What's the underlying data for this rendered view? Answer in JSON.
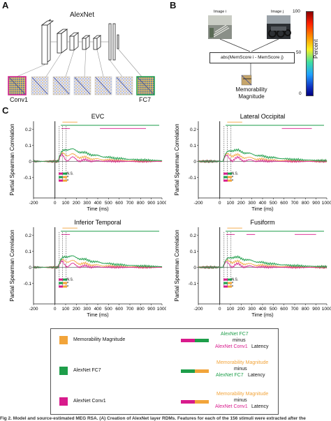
{
  "panel_a": {
    "letter": "A",
    "network_title": "AlexNet",
    "first_layer_label": "Conv1",
    "last_layer_label": "FC7"
  },
  "panel_b": {
    "letter": "B",
    "image_i_label": "Image i",
    "image_j_label": "Image j",
    "formula": "abs(MemScore i - MemScore j)",
    "output_label_line1": "Memorability",
    "output_label_line2": "Magnitude",
    "colorbar_label": "Percent",
    "colorbar_ticks": [
      "100",
      "50",
      "0"
    ]
  },
  "panel_c": {
    "letter": "C",
    "y_axis_label": "Partial Spearman Correlation",
    "x_axis_label": "Time (ms)",
    "ns_label": "N.S.",
    "star_label": "*",
    "x_ticks": [
      "-200",
      "0",
      "100",
      "200",
      "300",
      "400",
      "500",
      "600",
      "700",
      "800",
      "900",
      "1000"
    ],
    "y_ticks": [
      "0.2",
      "0.1",
      "0",
      "-0.1"
    ],
    "plots": [
      "EVC",
      "Lateral Occipital",
      "Inferior Temporal",
      "Fusiform"
    ]
  },
  "legend": {
    "items": [
      {
        "label": "Memorability Magnitude",
        "color": "#f2a43a"
      },
      {
        "label": "AlexNet FC7",
        "color": "#1e9e4a"
      },
      {
        "label": "AlexNet Conv1",
        "color": "#d81b8c"
      }
    ],
    "latency": [
      {
        "first": "AlexNet FC7",
        "minus": "minus",
        "second": "AlexNet Conv1",
        "suffix": "Latency"
      },
      {
        "first": "Memorability Magnitude",
        "minus": "minus",
        "second": "AlexNet FC7",
        "suffix": "Latency"
      },
      {
        "first": "Memorability Magnitude",
        "minus": "minus",
        "second": "AlexNet Conv1",
        "suffix": "Latency"
      }
    ]
  },
  "caption": "Fig 2. Model and source-estimated MEG RSA. (A) Creation of AlexNet layer RDMs. Features for each of the 156 stimuli were extracted after the",
  "colors": {
    "fc7": "#1e9e4a",
    "conv1": "#d81b8c",
    "mem": "#f2a43a"
  }
}
